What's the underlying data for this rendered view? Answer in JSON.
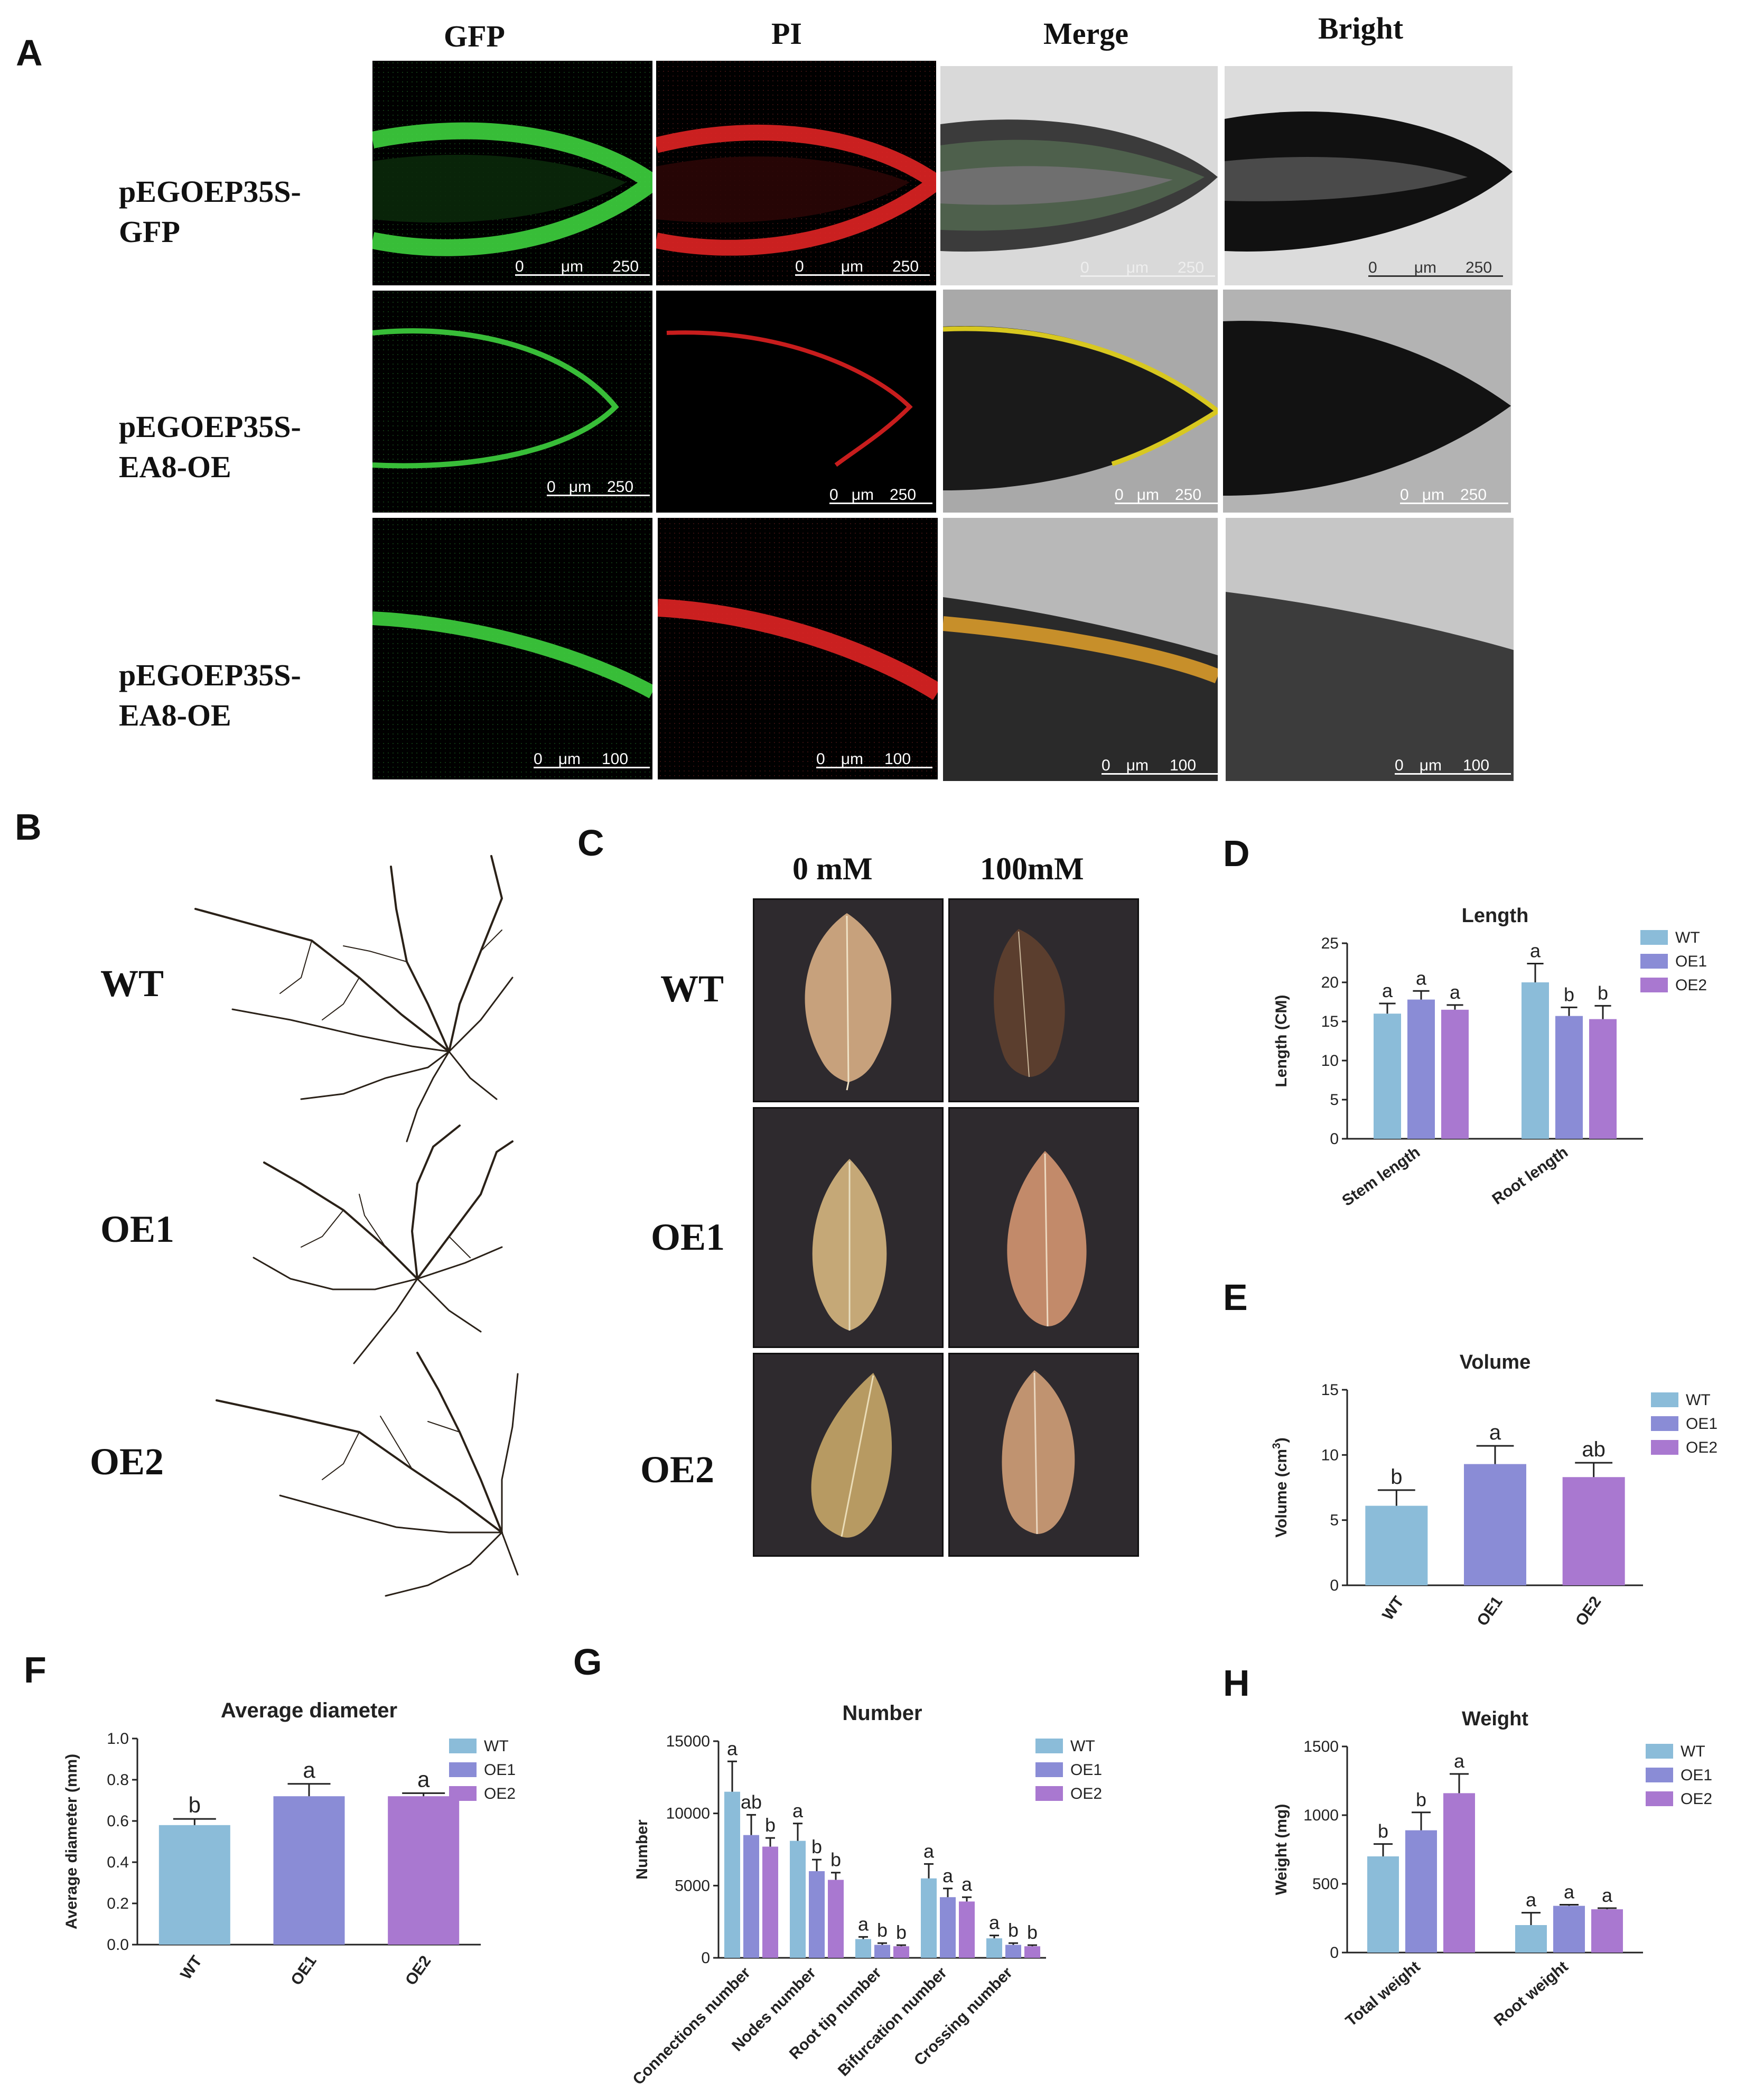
{
  "panels": {
    "A": "A",
    "B": "B",
    "C": "C",
    "D": "D",
    "E": "E",
    "F": "F",
    "G": "G",
    "H": "H"
  },
  "micro": {
    "columns": [
      "GFP",
      "PI",
      "Merge",
      "Bright"
    ],
    "rows": [
      {
        "line1": "pEGOEP35S-",
        "line2": "GFP",
        "scale": "250"
      },
      {
        "line1": "pEGOEP35S-",
        "line2": "EA8-OE",
        "scale": "250"
      },
      {
        "line1": "pEGOEP35S-",
        "line2": "EA8-OE",
        "scale": "100"
      }
    ],
    "scale_zero": "0",
    "scale_unit": "μm"
  },
  "roots": {
    "labels": [
      "WT",
      "OE1",
      "OE2"
    ]
  },
  "leaves": {
    "columns": [
      "0 mM",
      "100mM"
    ],
    "rows": [
      "WT",
      "OE1",
      "OE2"
    ]
  },
  "colors": {
    "WT": "#8bbcd9",
    "OE1": "#8a8cd6",
    "OE2": "#a978d0"
  },
  "chart_data": [
    {
      "id": "D",
      "type": "bar",
      "title": "Length",
      "ylabel": "Length (CM)",
      "ylim": [
        0,
        25
      ],
      "yticks": [
        0,
        5,
        10,
        15,
        20,
        25
      ],
      "categories": [
        "Stem length",
        "Root length"
      ],
      "series": [
        {
          "name": "WT",
          "values": [
            16.0,
            20.0
          ],
          "errors": [
            1.3,
            2.4
          ],
          "letters": [
            "a",
            "a"
          ]
        },
        {
          "name": "OE1",
          "values": [
            17.8,
            15.7
          ],
          "errors": [
            1.1,
            1.1
          ],
          "letters": [
            "a",
            "b"
          ]
        },
        {
          "name": "OE2",
          "values": [
            16.5,
            15.3
          ],
          "errors": [
            0.6,
            1.7
          ],
          "letters": [
            "a",
            "b"
          ]
        }
      ],
      "legend": [
        "WT",
        "OE1",
        "OE2"
      ]
    },
    {
      "id": "E",
      "type": "bar",
      "title": "Volume",
      "ylabel": "Volume (cm3)",
      "ylabel_main": "Volume (cm",
      "ylabel_sup": "3",
      "ylabel_end": ")",
      "ylim": [
        0,
        15
      ],
      "yticks": [
        0,
        5,
        10,
        15
      ],
      "categories": [
        "WT",
        "OE1",
        "OE2"
      ],
      "values": [
        6.1,
        9.3,
        8.3
      ],
      "errors": [
        1.2,
        1.4,
        1.1
      ],
      "letters": [
        "b",
        "a",
        "ab"
      ],
      "legend": [
        "WT",
        "OE1",
        "OE2"
      ]
    },
    {
      "id": "F",
      "type": "bar",
      "title": "Average diameter",
      "ylabel": "Average diameter (mm)",
      "ylim": [
        0,
        1.0
      ],
      "yticks": [
        "0.0",
        "0.2",
        "0.4",
        "0.6",
        "0.8",
        "1.0"
      ],
      "categories": [
        "WT",
        "OE1",
        "OE2"
      ],
      "values": [
        0.58,
        0.72,
        0.72
      ],
      "errors": [
        0.03,
        0.06,
        0.015
      ],
      "letters": [
        "b",
        "a",
        "a"
      ],
      "legend": [
        "WT",
        "OE1",
        "OE2"
      ]
    },
    {
      "id": "G",
      "type": "bar",
      "title": "Number",
      "ylabel": "Number",
      "ylim": [
        0,
        15000
      ],
      "yticks": [
        0,
        5000,
        10000,
        15000
      ],
      "categories": [
        "Connections number",
        "Nodes number",
        "Root tip number",
        "Bifurcation number",
        "Crossing number"
      ],
      "series": [
        {
          "name": "WT",
          "values": [
            11500,
            8100,
            1300,
            5500,
            1350
          ],
          "errors": [
            2100,
            1200,
            150,
            1000,
            200
          ],
          "letters": [
            "a",
            "a",
            "a",
            "a",
            "a"
          ]
        },
        {
          "name": "OE1",
          "values": [
            8500,
            6000,
            900,
            4200,
            900
          ],
          "errors": [
            1400,
            800,
            120,
            600,
            120
          ],
          "letters": [
            "ab",
            "b",
            "b",
            "a",
            "b"
          ]
        },
        {
          "name": "OE2",
          "values": [
            7700,
            5400,
            800,
            3900,
            800
          ],
          "errors": [
            600,
            500,
            80,
            300,
            80
          ],
          "letters": [
            "b",
            "b",
            "b",
            "a",
            "b"
          ]
        }
      ],
      "legend": [
        "WT",
        "OE1",
        "OE2"
      ]
    },
    {
      "id": "H",
      "type": "bar",
      "title": "Weight",
      "ylabel": "Weight (mg)",
      "ylim": [
        0,
        1500
      ],
      "yticks": [
        0,
        500,
        1000,
        1500
      ],
      "categories": [
        "Total weight",
        "Root weight"
      ],
      "series": [
        {
          "name": "WT",
          "values": [
            700,
            200
          ],
          "errors": [
            90,
            90
          ],
          "letters": [
            "b",
            "a"
          ]
        },
        {
          "name": "OE1",
          "values": [
            890,
            340
          ],
          "errors": [
            130,
            8
          ],
          "letters": [
            "b",
            "a"
          ]
        },
        {
          "name": "OE2",
          "values": [
            1160,
            315
          ],
          "errors": [
            140,
            8
          ],
          "letters": [
            "a",
            "a"
          ]
        }
      ],
      "legend": [
        "WT",
        "OE1",
        "OE2"
      ]
    }
  ]
}
